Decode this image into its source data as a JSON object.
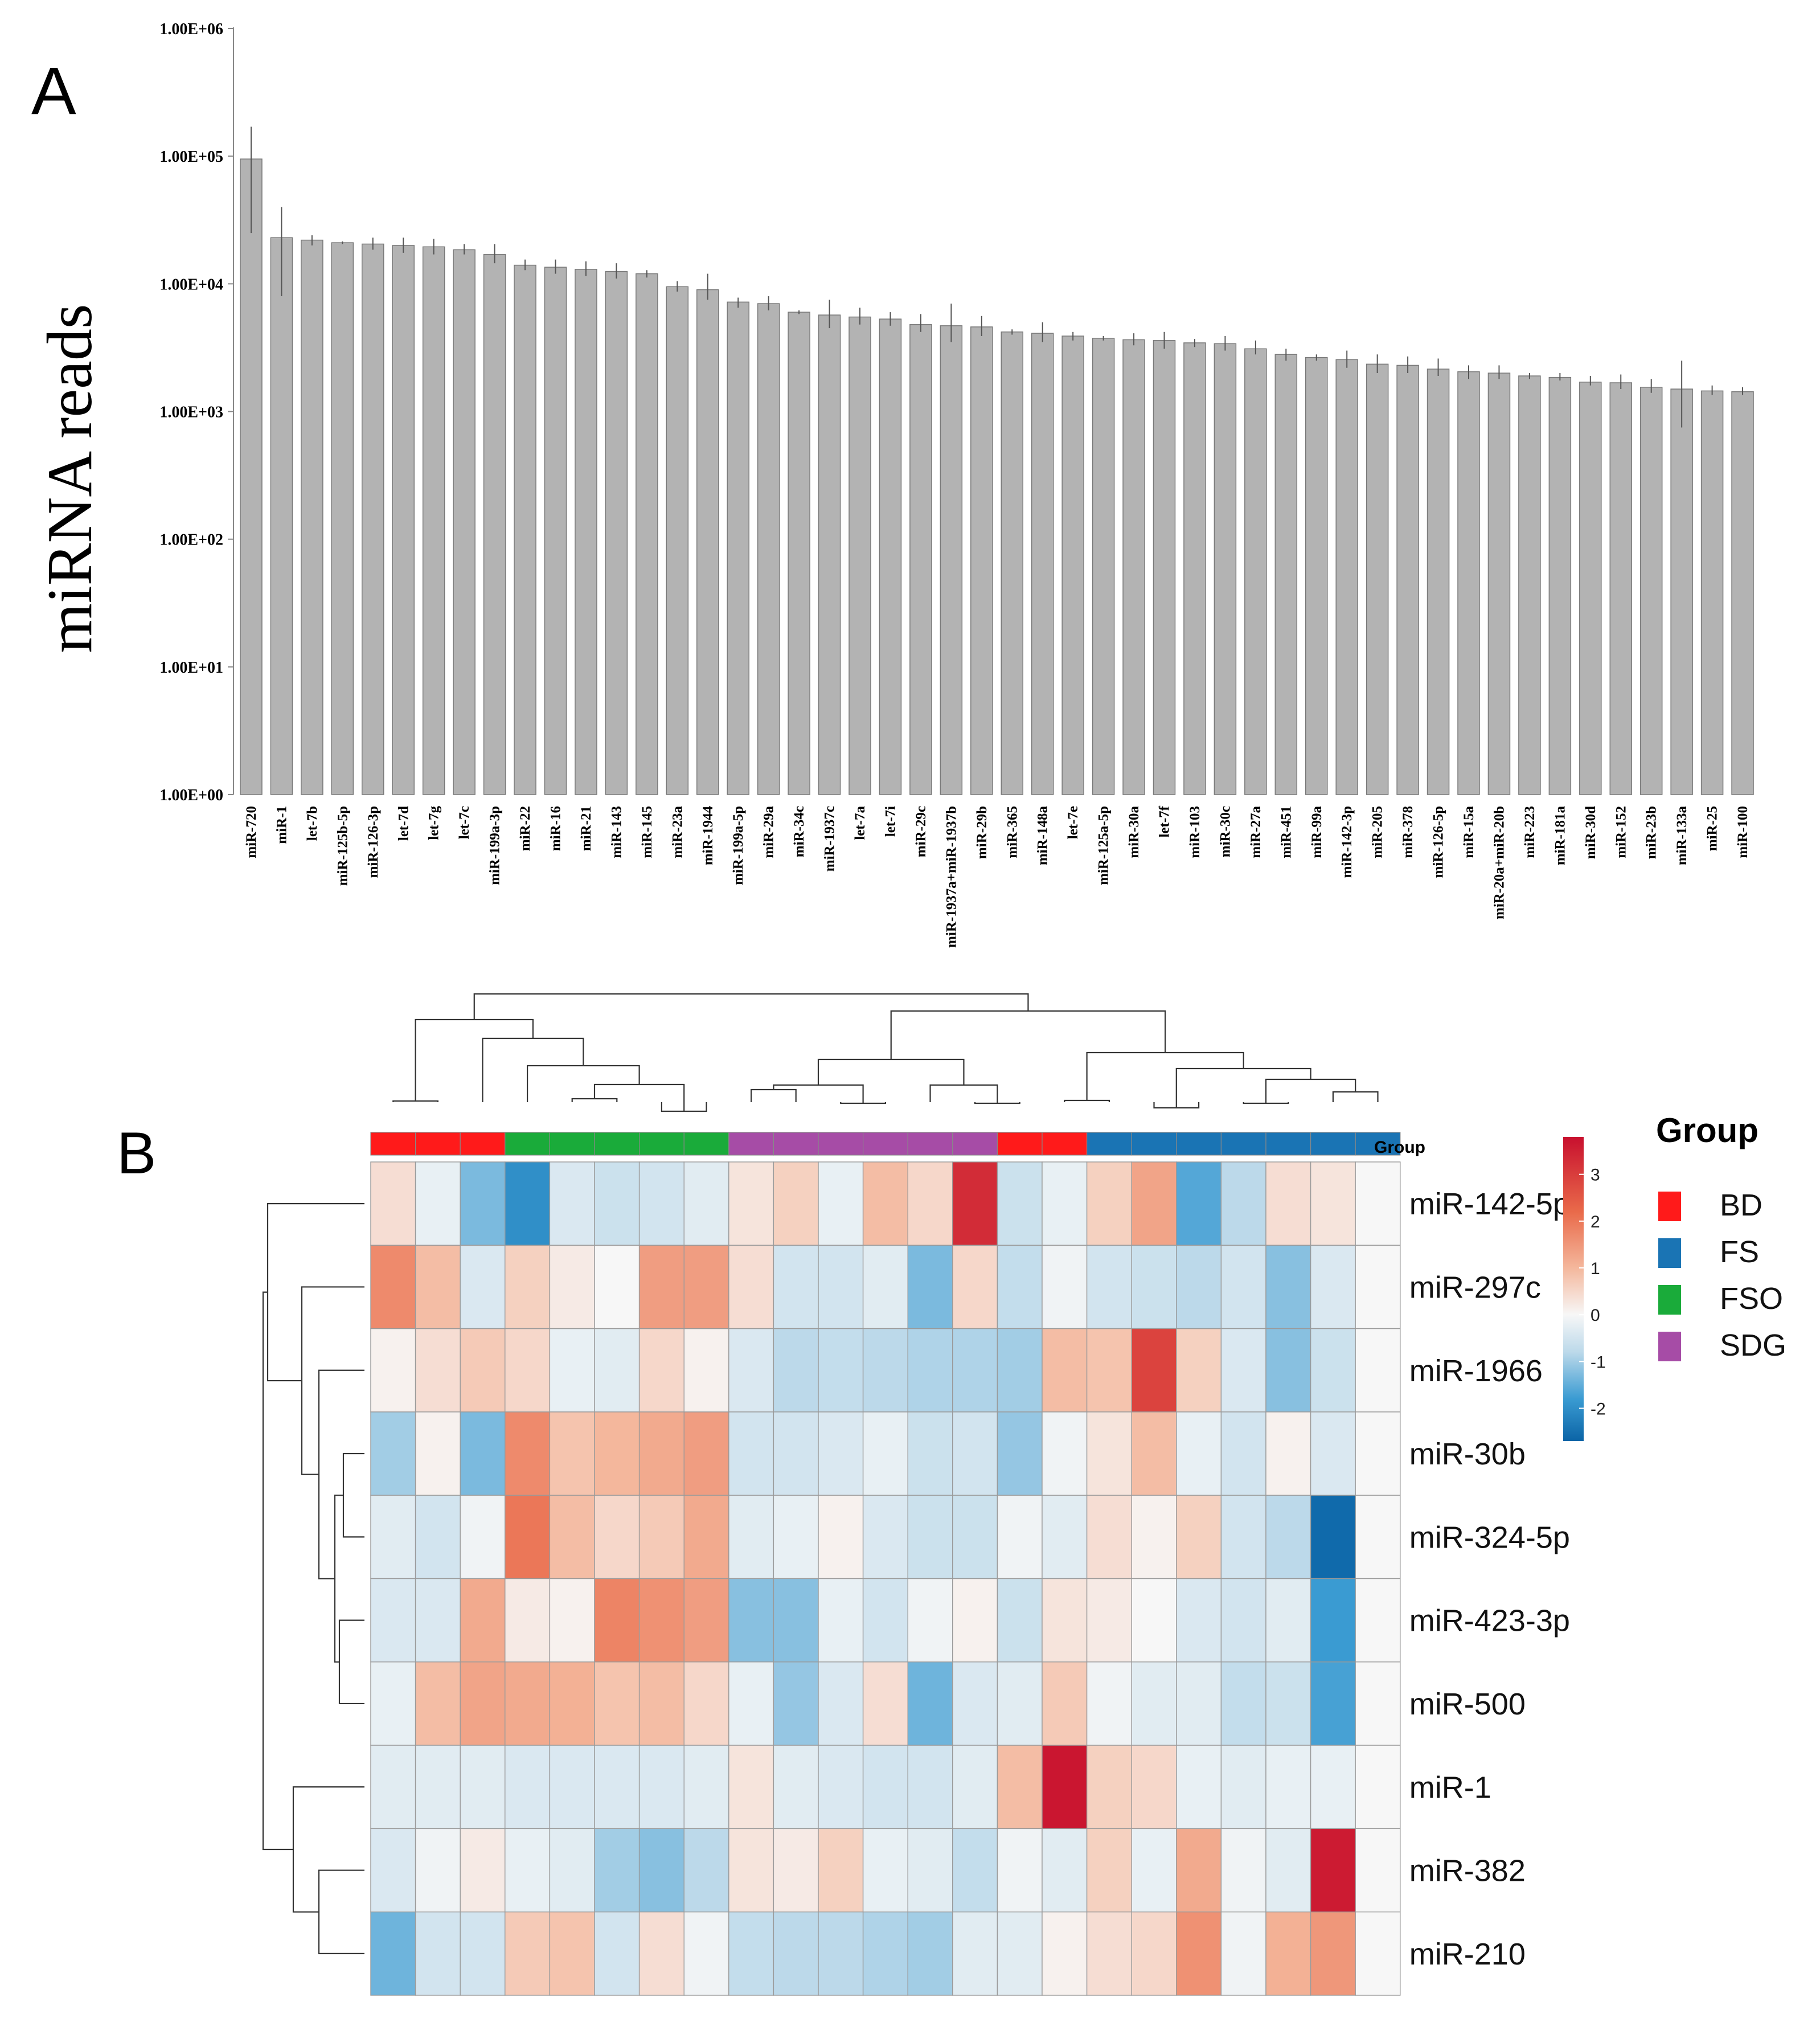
{
  "panels": {
    "a_label": "A",
    "b_label": "B"
  },
  "chart_data": [
    {
      "type": "bar",
      "panel": "A",
      "yscale": "log",
      "ylabel": "miRNA reads",
      "ytick_labels": [
        "1.00E+00",
        "1.00E+01",
        "1.00E+02",
        "1.00E+03",
        "1.00E+04",
        "1.00E+05",
        "1.00E+06"
      ],
      "ylim": [
        1,
        1000000
      ],
      "bar_color": "#b3b3b3",
      "categories": [
        "miR-720",
        "miR-1",
        "let-7b",
        "miR-125b-5p",
        "miR-126-3p",
        "let-7d",
        "let-7g",
        "let-7c",
        "miR-199a-3p",
        "miR-22",
        "miR-16",
        "miR-21",
        "miR-143",
        "miR-145",
        "miR-23a",
        "miR-1944",
        "miR-199a-5p",
        "miR-29a",
        "miR-34c",
        "miR-1937c",
        "let-7a",
        "let-7i",
        "miR-29c",
        "miR-1937a+miR-1937b",
        "miR-29b",
        "miR-365",
        "miR-148a",
        "let-7e",
        "miR-125a-5p",
        "miR-30a",
        "let-7f",
        "miR-103",
        "miR-30c",
        "miR-27a",
        "miR-451",
        "miR-99a",
        "miR-142-3p",
        "miR-205",
        "miR-378",
        "miR-126-5p",
        "miR-15a",
        "miR-20a+miR-20b",
        "miR-223",
        "miR-181a",
        "miR-30d",
        "miR-152",
        "miR-23b",
        "miR-133a",
        "miR-25",
        "miR-100"
      ],
      "values": [
        95000,
        23000,
        22000,
        21000,
        20500,
        20000,
        19500,
        18500,
        17000,
        14000,
        13500,
        13000,
        12500,
        12000,
        9500,
        9000,
        7200,
        7000,
        6000,
        5700,
        5500,
        5300,
        4800,
        4700,
        4600,
        4200,
        4100,
        3900,
        3750,
        3650,
        3600,
        3450,
        3400,
        3100,
        2800,
        2650,
        2550,
        2350,
        2300,
        2150,
        2050,
        2000,
        1900,
        1850,
        1700,
        1680,
        1550,
        1500,
        1450,
        1430
      ],
      "errors_high": [
        170000,
        40000,
        24000,
        21500,
        23000,
        23000,
        22500,
        20500,
        20500,
        15500,
        15500,
        15000,
        14500,
        12800,
        10500,
        12000,
        7800,
        8000,
        6200,
        7500,
        6500,
        6000,
        5800,
        7000,
        5600,
        4400,
        5000,
        4200,
        3900,
        4100,
        4200,
        3700,
        3900,
        3600,
        3100,
        2800,
        3000,
        2800,
        2700,
        2600,
        2300,
        2300,
        2000,
        2000,
        1900,
        1950,
        1800,
        2500,
        1600,
        1550
      ],
      "errors_low": [
        25000,
        8000,
        20000,
        20500,
        18500,
        17500,
        17000,
        17000,
        14500,
        12800,
        12000,
        11500,
        11000,
        11200,
        8700,
        7500,
        6500,
        6200,
        5800,
        4500,
        4800,
        4700,
        4200,
        3500,
        3900,
        4000,
        3500,
        3600,
        3600,
        3300,
        3100,
        3200,
        3000,
        2800,
        2500,
        2500,
        2200,
        2000,
        2000,
        1900,
        1800,
        1800,
        1800,
        1750,
        1600,
        1500,
        1400,
        750,
        1350,
        1350
      ]
    },
    {
      "type": "heatmap",
      "panel": "B",
      "group_track_label": "Group",
      "legend_title": "Group",
      "groups": [
        {
          "name": "BD",
          "color": "#ff1a1a"
        },
        {
          "name": "FS",
          "color": "#1a74b4"
        },
        {
          "name": "FSO",
          "color": "#1aab3a"
        },
        {
          "name": "SDG",
          "color": "#a64ca6"
        }
      ],
      "column_groups": [
        "BD",
        "BD",
        "BD",
        "FSO",
        "FSO",
        "FSO",
        "FSO",
        "FSO",
        "SDG",
        "SDG",
        "SDG",
        "SDG",
        "SDG",
        "SDG",
        "BD",
        "BD",
        "FS",
        "FS",
        "FS",
        "FS",
        "FS",
        "FS",
        "FS"
      ],
      "rows": [
        "miR-142-5p",
        "miR-297c",
        "miR-1966",
        "miR-30b",
        "miR-324-5p",
        "miR-423-3p",
        "miR-500",
        "miR-1",
        "miR-382",
        "miR-210"
      ],
      "values": [
        [
          0.4,
          -0.2,
          -1.3,
          -2.0,
          -0.4,
          -0.6,
          -0.5,
          -0.3,
          0.3,
          0.6,
          -0.2,
          0.9,
          0.5,
          3.3,
          -0.6,
          -0.2,
          0.6,
          1.3,
          -1.6,
          -0.8,
          0.4,
          0.3,
          0
        ],
        [
          1.7,
          0.9,
          -0.4,
          0.6,
          0.2,
          0,
          1.4,
          1.4,
          0.4,
          -0.5,
          -0.5,
          -0.3,
          -1.3,
          0.5,
          -0.7,
          -0.1,
          -0.5,
          -0.6,
          -0.8,
          -0.5,
          -1.2,
          -0.4,
          0
        ],
        [
          0.1,
          0.4,
          0.7,
          0.5,
          -0.2,
          -0.3,
          0.5,
          0.1,
          -0.4,
          -0.8,
          -0.7,
          -0.8,
          -0.9,
          -0.9,
          -1.0,
          0.9,
          0.8,
          2.9,
          0.6,
          -0.4,
          -1.2,
          -0.6,
          0
        ],
        [
          -1.0,
          0.1,
          -1.3,
          1.7,
          0.8,
          1.0,
          1.2,
          1.4,
          -0.5,
          -0.5,
          -0.4,
          -0.2,
          -0.6,
          -0.5,
          -1.1,
          -0.1,
          0.3,
          0.9,
          -0.2,
          -0.5,
          0.1,
          -0.4,
          0
        ],
        [
          -0.3,
          -0.5,
          -0.1,
          2.0,
          0.9,
          0.5,
          0.7,
          1.2,
          -0.3,
          -0.2,
          0.1,
          -0.4,
          -0.6,
          -0.6,
          -0.1,
          -0.3,
          0.4,
          0.1,
          0.6,
          -0.5,
          -0.8,
          -2.6,
          0
        ],
        [
          -0.4,
          -0.4,
          1.2,
          0.2,
          0.1,
          1.8,
          1.6,
          1.4,
          -1.2,
          -1.2,
          -0.2,
          -0.5,
          -0.1,
          0.1,
          -0.6,
          0.3,
          0.2,
          0,
          -0.4,
          -0.5,
          -0.3,
          -1.8,
          0
        ],
        [
          -0.2,
          0.9,
          1.3,
          1.2,
          1.1,
          0.8,
          0.9,
          0.5,
          -0.2,
          -1.1,
          -0.4,
          0.4,
          -1.4,
          -0.4,
          -0.3,
          0.7,
          -0.1,
          -0.3,
          -0.3,
          -0.7,
          -0.6,
          -1.7,
          0
        ],
        [
          -0.3,
          -0.3,
          -0.3,
          -0.4,
          -0.4,
          -0.4,
          -0.4,
          -0.3,
          0.3,
          -0.3,
          -0.4,
          -0.5,
          -0.5,
          -0.3,
          0.9,
          3.7,
          0.6,
          0.5,
          -0.2,
          -0.3,
          -0.2,
          -0.2,
          0
        ],
        [
          -0.4,
          -0.1,
          0.2,
          -0.2,
          -0.3,
          -1.0,
          -1.2,
          -0.8,
          0.3,
          0.2,
          0.6,
          -0.2,
          -0.3,
          -0.7,
          -0.1,
          -0.3,
          0.6,
          -0.2,
          1.2,
          -0.1,
          -0.3,
          3.6,
          0
        ],
        [
          -1.4,
          -0.5,
          -0.5,
          0.7,
          0.8,
          -0.5,
          0.4,
          -0.1,
          -0.7,
          -0.8,
          -0.8,
          -0.9,
          -1.0,
          -0.3,
          -0.3,
          0.1,
          0.4,
          0.5,
          1.6,
          -0.1,
          1.1,
          1.5,
          0
        ]
      ],
      "colorbar_ticks": [
        "3",
        "2",
        "1",
        "0",
        "-1",
        "-2"
      ],
      "colorbar_range": [
        -2.7,
        3.8
      ],
      "colorscale": [
        "#0b64a6",
        "#3a9bd2",
        "#bcd9ea",
        "#f7f7f7",
        "#f4b79c",
        "#e96a4a",
        "#c8102e"
      ]
    }
  ]
}
